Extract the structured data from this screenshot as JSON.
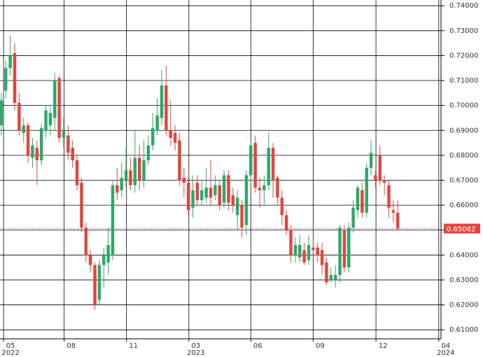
{
  "chart_data": {
    "type": "candlestick",
    "x": [
      0,
      1,
      2,
      3,
      4,
      5,
      6,
      7,
      8,
      9,
      10,
      11,
      12,
      13,
      14,
      15,
      16,
      17,
      18,
      19,
      20,
      21,
      22,
      23,
      24,
      25,
      26,
      27,
      28,
      29,
      30,
      31,
      32,
      33,
      34,
      35,
      36,
      37,
      38,
      39,
      40,
      41,
      42,
      43,
      44,
      45,
      46,
      47,
      48,
      49,
      50,
      51,
      52,
      53,
      54,
      55,
      56,
      57,
      58,
      59,
      60,
      61,
      62,
      63,
      64,
      65,
      66,
      67,
      68,
      69,
      70,
      71,
      72,
      73,
      74,
      75,
      76,
      77,
      78,
      79,
      80,
      81,
      82,
      83,
      84,
      85,
      86,
      87,
      88,
      89
    ],
    "open": [
      0.692,
      0.706,
      0.715,
      0.721,
      0.701,
      0.689,
      0.692,
      0.679,
      0.683,
      0.678,
      0.69,
      0.692,
      0.695,
      0.711,
      0.687,
      0.688,
      0.683,
      0.678,
      0.669,
      0.651,
      0.64,
      0.636,
      0.622,
      0.636,
      0.637,
      0.64,
      0.668,
      0.666,
      0.67,
      0.674,
      0.668,
      0.679,
      0.67,
      0.678,
      0.684,
      0.69,
      0.695,
      0.708,
      0.69,
      0.689,
      0.686,
      0.671,
      0.669,
      0.659,
      0.669,
      0.662,
      0.663,
      0.667,
      0.664,
      0.668,
      0.661,
      0.672,
      0.664,
      0.656,
      0.66,
      0.652,
      0.672,
      0.685,
      0.667,
      0.666,
      0.668,
      0.683,
      0.671,
      0.663,
      0.656,
      0.65,
      0.64,
      0.639,
      0.642,
      0.638,
      0.643,
      0.643,
      0.642,
      0.637,
      0.63,
      0.63,
      0.632,
      0.65,
      0.635,
      0.651,
      0.658,
      0.666,
      0.657,
      0.675,
      0.672,
      0.68,
      0.67,
      0.668,
      0.658,
      0.657
    ],
    "close": [
      0.702,
      0.715,
      0.72,
      0.701,
      0.69,
      0.692,
      0.68,
      0.684,
      0.678,
      0.691,
      0.698,
      0.697,
      0.71,
      0.687,
      0.69,
      0.681,
      0.678,
      0.668,
      0.651,
      0.64,
      0.636,
      0.62,
      0.636,
      0.64,
      0.644,
      0.668,
      0.665,
      0.671,
      0.674,
      0.668,
      0.679,
      0.67,
      0.678,
      0.684,
      0.691,
      0.696,
      0.708,
      0.69,
      0.687,
      0.685,
      0.67,
      0.669,
      0.658,
      0.666,
      0.662,
      0.666,
      0.667,
      0.663,
      0.668,
      0.66,
      0.672,
      0.661,
      0.66,
      0.663,
      0.651,
      0.672,
      0.684,
      0.667,
      0.666,
      0.668,
      0.683,
      0.67,
      0.663,
      0.656,
      0.65,
      0.64,
      0.644,
      0.644,
      0.637,
      0.644,
      0.642,
      0.64,
      0.636,
      0.629,
      0.632,
      0.632,
      0.651,
      0.635,
      0.651,
      0.659,
      0.667,
      0.657,
      0.675,
      0.681,
      0.67,
      0.67,
      0.669,
      0.659,
      0.657,
      0.65062
    ],
    "high": [
      0.705,
      0.718,
      0.728,
      0.725,
      0.705,
      0.695,
      0.693,
      0.687,
      0.686,
      0.693,
      0.7,
      0.7,
      0.713,
      0.712,
      0.695,
      0.692,
      0.686,
      0.68,
      0.671,
      0.653,
      0.642,
      0.637,
      0.638,
      0.643,
      0.651,
      0.67,
      0.675,
      0.677,
      0.683,
      0.679,
      0.69,
      0.684,
      0.686,
      0.688,
      0.697,
      0.703,
      0.714,
      0.716,
      0.702,
      0.692,
      0.689,
      0.675,
      0.671,
      0.672,
      0.672,
      0.67,
      0.675,
      0.678,
      0.672,
      0.67,
      0.674,
      0.674,
      0.667,
      0.666,
      0.662,
      0.674,
      0.686,
      0.688,
      0.671,
      0.672,
      0.689,
      0.685,
      0.672,
      0.666,
      0.658,
      0.652,
      0.647,
      0.648,
      0.645,
      0.648,
      0.647,
      0.645,
      0.645,
      0.639,
      0.635,
      0.636,
      0.652,
      0.652,
      0.653,
      0.662,
      0.668,
      0.669,
      0.677,
      0.686,
      0.674,
      0.684,
      0.672,
      0.67,
      0.662,
      0.662
    ],
    "low": [
      0.688,
      0.703,
      0.712,
      0.698,
      0.688,
      0.685,
      0.677,
      0.675,
      0.668,
      0.676,
      0.687,
      0.688,
      0.69,
      0.685,
      0.683,
      0.678,
      0.675,
      0.666,
      0.649,
      0.637,
      0.633,
      0.618,
      0.62,
      0.627,
      0.632,
      0.638,
      0.662,
      0.663,
      0.667,
      0.666,
      0.665,
      0.666,
      0.667,
      0.676,
      0.682,
      0.688,
      0.692,
      0.688,
      0.684,
      0.682,
      0.668,
      0.663,
      0.656,
      0.655,
      0.66,
      0.66,
      0.661,
      0.66,
      0.662,
      0.658,
      0.659,
      0.658,
      0.657,
      0.65,
      0.647,
      0.648,
      0.669,
      0.665,
      0.659,
      0.66,
      0.666,
      0.663,
      0.66,
      0.652,
      0.648,
      0.637,
      0.637,
      0.637,
      0.636,
      0.636,
      0.639,
      0.637,
      0.632,
      0.628,
      0.629,
      0.627,
      0.629,
      0.633,
      0.633,
      0.649,
      0.655,
      0.655,
      0.655,
      0.672,
      0.667,
      0.668,
      0.664,
      0.655,
      0.653,
      0.65
    ],
    "up_color": "#2ea86b",
    "down_color": "#e0463f",
    "ylim": [
      0.6064,
      0.7423
    ],
    "yticks": [
      {
        "value": 0.61,
        "label": "0.61000"
      },
      {
        "value": 0.62,
        "label": "0.62000"
      },
      {
        "value": 0.63,
        "label": "0.63000"
      },
      {
        "value": 0.64,
        "label": "0.64000"
      },
      {
        "value": 0.65,
        "label": "0.65000"
      },
      {
        "value": 0.66,
        "label": "0.66000"
      },
      {
        "value": 0.67,
        "label": "0.67000"
      },
      {
        "value": 0.68,
        "label": "0.68000"
      },
      {
        "value": 0.69,
        "label": "0.69000"
      },
      {
        "value": 0.7,
        "label": "0.70000"
      },
      {
        "value": 0.71,
        "label": "0.71000"
      },
      {
        "value": 0.72,
        "label": "0.72000"
      },
      {
        "value": 0.73,
        "label": "0.73000"
      },
      {
        "value": 0.74,
        "label": "0.74000"
      }
    ],
    "xlim": [
      -0.3,
      98.7
    ],
    "xticks": [
      {
        "value": 0.5,
        "label": "05"
      },
      {
        "value": 14.1,
        "label": "08"
      },
      {
        "value": 28.1,
        "label": "11"
      },
      {
        "value": 42.1,
        "label": "03"
      },
      {
        "value": 56,
        "label": "06"
      },
      {
        "value": 70,
        "label": "09"
      },
      {
        "value": 84.1,
        "label": "12"
      },
      {
        "value": 98.2,
        "label": "04"
      }
    ],
    "year_ticks": [
      {
        "value": 0.5,
        "label": "2022"
      },
      {
        "value": 42.1,
        "label": "2023"
      },
      {
        "value": 98.2,
        "label": "2024"
      }
    ],
    "last_price": 0.65062,
    "grid": true
  }
}
